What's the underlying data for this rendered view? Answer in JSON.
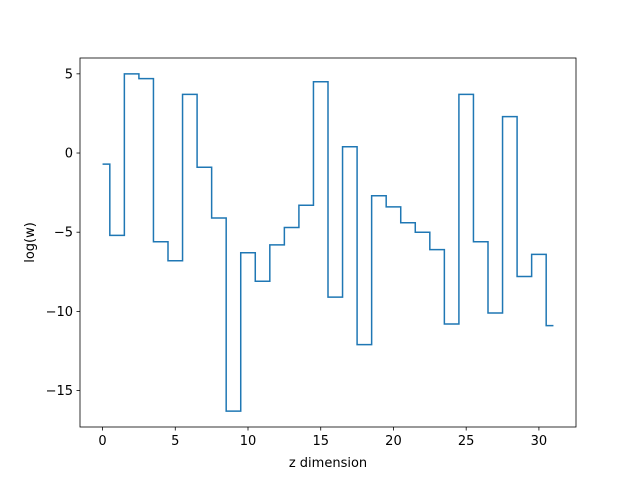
{
  "chart_data": {
    "type": "line",
    "drawstyle": "steps-mid",
    "title": "",
    "xlabel": "z dimension",
    "ylabel": "log(w)",
    "xlim": [
      -1.55,
      32.55
    ],
    "ylim": [
      -17.3,
      6.0
    ],
    "xticks": [
      0,
      5,
      10,
      15,
      20,
      25,
      30
    ],
    "yticks": [
      -15,
      -10,
      -5,
      0,
      5
    ],
    "ytick_labels": [
      "−15",
      "−10",
      "−5",
      "0",
      "5"
    ],
    "grid": false,
    "line_color": "#1f77b4",
    "series": [
      {
        "x": [
          0,
          1,
          2,
          3,
          4,
          5,
          6,
          7,
          8,
          9,
          10,
          11,
          12,
          13,
          14,
          15,
          16,
          17,
          18,
          19,
          20,
          21,
          22,
          23,
          24,
          25,
          26,
          27,
          28,
          29,
          30,
          31
        ],
        "values": [
          -0.7,
          -5.2,
          5.0,
          4.7,
          -5.6,
          -6.8,
          3.7,
          -0.9,
          -4.1,
          -16.3,
          -6.3,
          -8.1,
          -5.8,
          -4.7,
          -3.3,
          4.5,
          -9.1,
          0.4,
          -12.1,
          -2.7,
          -3.4,
          -4.4,
          -5.0,
          -6.1,
          -10.8,
          3.7,
          -5.6,
          -10.1,
          2.3,
          -7.8,
          -6.4,
          -10.9
        ]
      }
    ]
  }
}
